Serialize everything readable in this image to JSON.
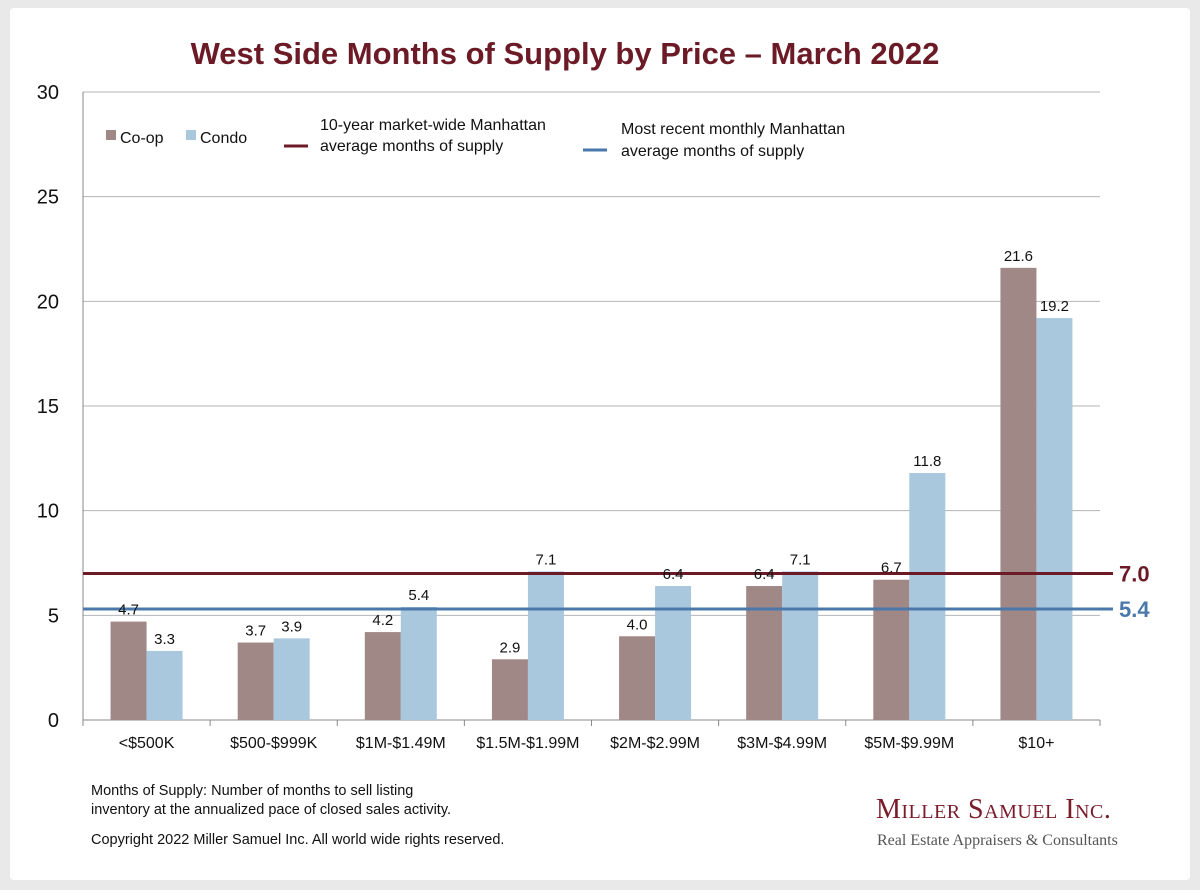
{
  "title": "West Side Months of Supply by Price – March 2022",
  "legend": {
    "coop": "Co-op",
    "condo": "Condo",
    "ten_year_line_1": "10-year market-wide Manhattan",
    "ten_year_line_2": "average months of supply",
    "recent_line_1": "Most recent monthly Manhattan",
    "recent_line_2": "average months of supply"
  },
  "footnote": {
    "line1": "Months of Supply: Number of months to sell listing",
    "line2": "inventory at the annualized pace of closed sales activity.",
    "copyright": "Copyright 2022 Miller Samuel Inc.  All world wide rights reserved."
  },
  "brand": {
    "name": "Miller Samuel Inc.",
    "tagline": "Real Estate Appraisers & Consultants"
  },
  "colors": {
    "coop": "#a08886",
    "condo": "#a9c8de",
    "ten_year_line": "#6b1a26",
    "recent_line": "#4a78ab",
    "title": "#6b1a26"
  },
  "chart_data": {
    "type": "bar",
    "title": "West Side Months of Supply by Price – March 2022",
    "categories": [
      "<$500K",
      "$500-$999K",
      "$1M-$1.49M",
      "$1.5M-$1.99M",
      "$2M-$2.99M",
      "$3M-$4.99M",
      "$5M-$9.99M",
      "$10+"
    ],
    "series": [
      {
        "name": "Co-op",
        "values": [
          4.7,
          3.7,
          4.2,
          2.9,
          4.0,
          6.4,
          6.7,
          21.6
        ]
      },
      {
        "name": "Condo",
        "values": [
          3.3,
          3.9,
          5.4,
          7.1,
          6.4,
          7.1,
          11.8,
          19.2
        ]
      }
    ],
    "reference_lines": [
      {
        "name": "10-year market-wide Manhattan average months of supply",
        "value": 7.0,
        "label": "7.0"
      },
      {
        "name": "Most recent monthly Manhattan average months of supply",
        "value": 5.4,
        "label": "5.4"
      }
    ],
    "ylim": [
      0,
      30
    ],
    "yticks": [
      0,
      5,
      10,
      15,
      20,
      25,
      30
    ],
    "xlabel": "",
    "ylabel": "",
    "grid": true,
    "legend_position": "top"
  }
}
